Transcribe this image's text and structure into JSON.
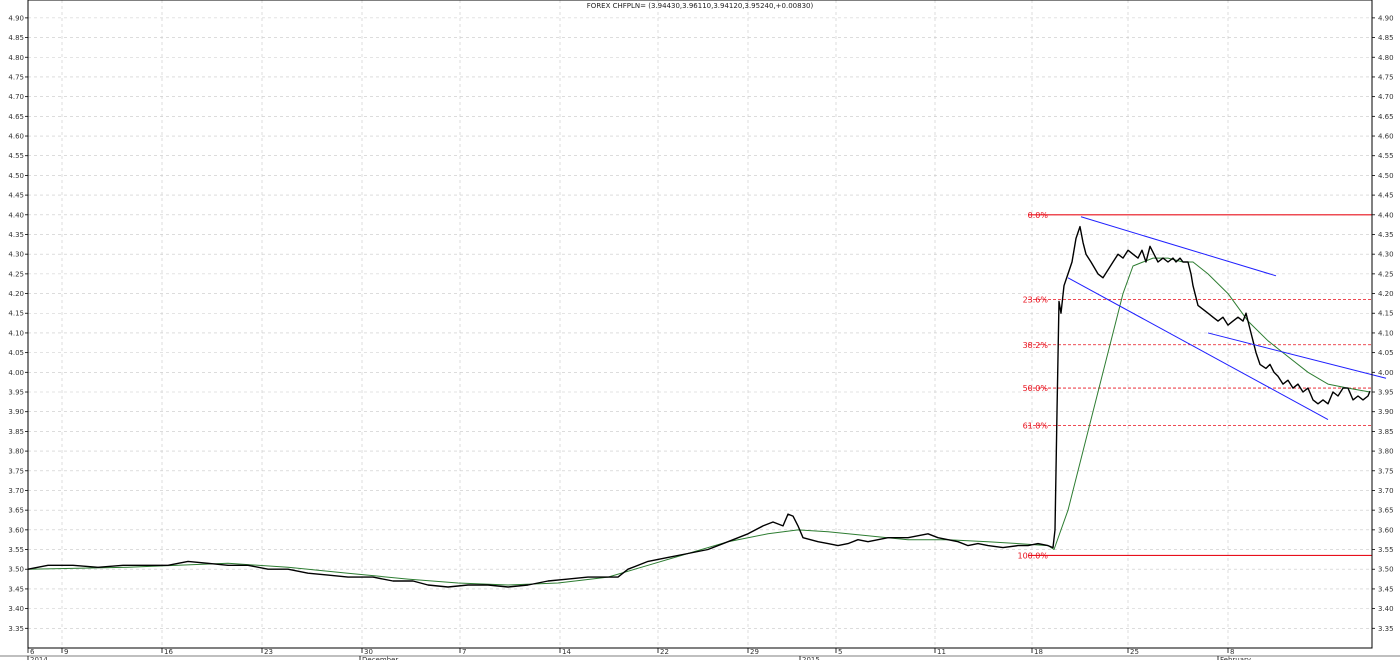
{
  "chart_data": {
    "type": "line",
    "title": "FOREX CHFPLN= (3.94430,3.96110,3.94120,3.95240,+0.00830)",
    "ylim": [
      3.3,
      4.92
    ],
    "y_ticks": [
      "4.90",
      "4.85",
      "4.80",
      "4.75",
      "4.70",
      "4.65",
      "4.60",
      "4.55",
      "4.50",
      "4.45",
      "4.40",
      "4.35",
      "4.30",
      "4.25",
      "4.20",
      "4.15",
      "4.10",
      "4.05",
      "4.00",
      "3.95",
      "3.90",
      "3.85",
      "3.80",
      "3.75",
      "3.70",
      "3.65",
      "3.60",
      "3.55",
      "3.50",
      "3.45",
      "3.40",
      "3.35"
    ],
    "x_day_labels": [
      "6",
      "9",
      "16",
      "23",
      "30",
      "7",
      "14",
      "22",
      "29",
      "5",
      "11",
      "18",
      "25",
      "8"
    ],
    "x_period_labels": [
      "2014",
      "December",
      "2015",
      "February"
    ],
    "grid": true,
    "series": [
      {
        "role": "price",
        "color": "#000000",
        "points": [
          [
            0,
            3.5
          ],
          [
            20,
            3.51
          ],
          [
            45,
            3.51
          ],
          [
            70,
            3.505
          ],
          [
            95,
            3.51
          ],
          [
            120,
            3.51
          ],
          [
            140,
            3.51
          ],
          [
            160,
            3.52
          ],
          [
            180,
            3.515
          ],
          [
            200,
            3.51
          ],
          [
            220,
            3.51
          ],
          [
            240,
            3.5
          ],
          [
            260,
            3.5
          ],
          [
            280,
            3.49
          ],
          [
            300,
            3.485
          ],
          [
            320,
            3.48
          ],
          [
            345,
            3.48
          ],
          [
            365,
            3.47
          ],
          [
            385,
            3.47
          ],
          [
            400,
            3.46
          ],
          [
            420,
            3.455
          ],
          [
            440,
            3.46
          ],
          [
            460,
            3.46
          ],
          [
            480,
            3.455
          ],
          [
            500,
            3.46
          ],
          [
            520,
            3.47
          ],
          [
            540,
            3.475
          ],
          [
            560,
            3.48
          ],
          [
            575,
            3.48
          ],
          [
            590,
            3.48
          ],
          [
            600,
            3.5
          ],
          [
            620,
            3.52
          ],
          [
            640,
            3.53
          ],
          [
            660,
            3.54
          ],
          [
            680,
            3.55
          ],
          [
            700,
            3.57
          ],
          [
            720,
            3.59
          ],
          [
            735,
            3.61
          ],
          [
            745,
            3.62
          ],
          [
            755,
            3.61
          ],
          [
            760,
            3.64
          ],
          [
            765,
            3.635
          ],
          [
            770,
            3.61
          ],
          [
            775,
            3.58
          ],
          [
            790,
            3.57
          ],
          [
            800,
            3.565
          ],
          [
            810,
            3.56
          ],
          [
            820,
            3.565
          ],
          [
            830,
            3.575
          ],
          [
            840,
            3.57
          ],
          [
            860,
            3.58
          ],
          [
            880,
            3.58
          ],
          [
            900,
            3.59
          ],
          [
            910,
            3.58
          ],
          [
            920,
            3.575
          ],
          [
            930,
            3.57
          ],
          [
            940,
            3.56
          ],
          [
            950,
            3.565
          ],
          [
            960,
            3.56
          ],
          [
            975,
            3.555
          ],
          [
            990,
            3.56
          ],
          [
            1000,
            3.56
          ],
          [
            1010,
            3.565
          ],
          [
            1020,
            3.56
          ],
          [
            1025,
            3.555
          ],
          [
            1027,
            3.6
          ],
          [
            1029,
            3.9
          ],
          [
            1031,
            4.18
          ],
          [
            1033,
            4.15
          ],
          [
            1036,
            4.22
          ],
          [
            1040,
            4.25
          ],
          [
            1044,
            4.28
          ],
          [
            1048,
            4.34
          ],
          [
            1052,
            4.37
          ],
          [
            1055,
            4.33
          ],
          [
            1058,
            4.3
          ],
          [
            1063,
            4.28
          ],
          [
            1070,
            4.25
          ],
          [
            1075,
            4.24
          ],
          [
            1080,
            4.26
          ],
          [
            1085,
            4.28
          ],
          [
            1090,
            4.3
          ],
          [
            1095,
            4.29
          ],
          [
            1100,
            4.31
          ],
          [
            1105,
            4.3
          ],
          [
            1110,
            4.29
          ],
          [
            1114,
            4.31
          ],
          [
            1118,
            4.28
          ],
          [
            1122,
            4.32
          ],
          [
            1126,
            4.3
          ],
          [
            1130,
            4.28
          ],
          [
            1135,
            4.29
          ],
          [
            1140,
            4.28
          ],
          [
            1145,
            4.29
          ],
          [
            1148,
            4.28
          ],
          [
            1152,
            4.29
          ],
          [
            1155,
            4.28
          ],
          [
            1160,
            4.28
          ],
          [
            1163,
            4.25
          ],
          [
            1165,
            4.22
          ],
          [
            1170,
            4.17
          ],
          [
            1175,
            4.16
          ],
          [
            1180,
            4.15
          ],
          [
            1185,
            4.14
          ],
          [
            1190,
            4.13
          ],
          [
            1195,
            4.14
          ],
          [
            1200,
            4.12
          ],
          [
            1205,
            4.13
          ],
          [
            1210,
            4.14
          ],
          [
            1215,
            4.13
          ],
          [
            1218,
            4.15
          ],
          [
            1222,
            4.11
          ],
          [
            1225,
            4.08
          ],
          [
            1228,
            4.05
          ],
          [
            1232,
            4.02
          ],
          [
            1238,
            4.01
          ],
          [
            1242,
            4.02
          ],
          [
            1246,
            4.0
          ],
          [
            1250,
            3.99
          ],
          [
            1255,
            3.97
          ],
          [
            1260,
            3.98
          ],
          [
            1265,
            3.96
          ],
          [
            1270,
            3.97
          ],
          [
            1275,
            3.95
          ],
          [
            1280,
            3.96
          ],
          [
            1285,
            3.93
          ],
          [
            1290,
            3.92
          ],
          [
            1295,
            3.93
          ],
          [
            1300,
            3.92
          ],
          [
            1305,
            3.95
          ],
          [
            1310,
            3.94
          ],
          [
            1315,
            3.96
          ],
          [
            1320,
            3.96
          ],
          [
            1325,
            3.93
          ],
          [
            1330,
            3.94
          ],
          [
            1335,
            3.93
          ],
          [
            1340,
            3.94
          ],
          [
            1342,
            3.9524
          ]
        ]
      },
      {
        "role": "moving-average",
        "color": "#2e7d32",
        "points": [
          [
            0,
            3.5
          ],
          [
            100,
            3.505
          ],
          [
            150,
            3.51
          ],
          [
            200,
            3.515
          ],
          [
            260,
            3.505
          ],
          [
            320,
            3.49
          ],
          [
            380,
            3.475
          ],
          [
            430,
            3.465
          ],
          [
            480,
            3.46
          ],
          [
            530,
            3.465
          ],
          [
            580,
            3.48
          ],
          [
            620,
            3.51
          ],
          [
            660,
            3.54
          ],
          [
            700,
            3.57
          ],
          [
            740,
            3.59
          ],
          [
            770,
            3.6
          ],
          [
            800,
            3.595
          ],
          [
            840,
            3.585
          ],
          [
            880,
            3.575
          ],
          [
            920,
            3.575
          ],
          [
            960,
            3.57
          ],
          [
            990,
            3.565
          ],
          [
            1020,
            3.56
          ],
          [
            1026,
            3.55
          ],
          [
            1040,
            3.65
          ],
          [
            1060,
            3.85
          ],
          [
            1080,
            4.05
          ],
          [
            1095,
            4.2
          ],
          [
            1105,
            4.27
          ],
          [
            1115,
            4.28
          ],
          [
            1125,
            4.29
          ],
          [
            1140,
            4.29
          ],
          [
            1155,
            4.28
          ],
          [
            1165,
            4.28
          ],
          [
            1180,
            4.25
          ],
          [
            1200,
            4.2
          ],
          [
            1220,
            4.13
          ],
          [
            1240,
            4.08
          ],
          [
            1260,
            4.04
          ],
          [
            1280,
            4.0
          ],
          [
            1300,
            3.97
          ],
          [
            1320,
            3.96
          ],
          [
            1342,
            3.95
          ]
        ]
      }
    ],
    "trendlines": [
      {
        "color": "#2020ff",
        "from": [
          1053,
          4.395
        ],
        "to": [
          1248,
          4.245
        ]
      },
      {
        "color": "#2020ff",
        "from": [
          1040,
          4.24
        ],
        "to": [
          1300,
          3.88
        ]
      },
      {
        "color": "#2020ff",
        "from": [
          1180,
          4.1
        ],
        "to": [
          1358,
          3.985
        ]
      }
    ],
    "fibonacci": {
      "color": "#e8101c",
      "levels": [
        {
          "label": "0.0%",
          "value": 4.4
        },
        {
          "label": "23.6%",
          "value": 4.185
        },
        {
          "label": "38.2%",
          "value": 4.07
        },
        {
          "label": "50.0%",
          "value": 3.96
        },
        {
          "label": "61.8%",
          "value": 3.865
        },
        {
          "label": "100.0%",
          "value": 3.535
        }
      ]
    }
  }
}
